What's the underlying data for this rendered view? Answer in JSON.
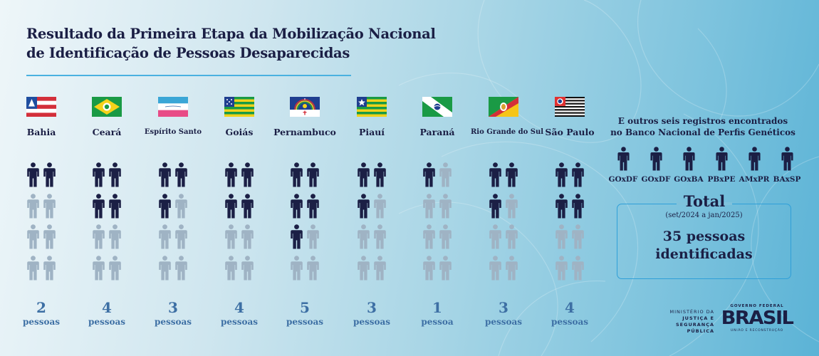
{
  "title": {
    "line1": "Resultado da Primeira Etapa da Mobilização Nacional",
    "line2": "de Identificação de Pessoas Desaparecidas"
  },
  "colors": {
    "filled_person": "#1b1f45",
    "empty_person": "#9fb3c4",
    "count_text": "#3d6fa4",
    "accent_rule": "#4ab1e0",
    "total_box_border": "#2f9fd8"
  },
  "states": [
    {
      "name": "Bahia",
      "flag": "bahia-flag",
      "count": "2",
      "unit": "pessoas",
      "filled": 2
    },
    {
      "name": "Ceará",
      "flag": "ceara-flag",
      "count": "4",
      "unit": "pessoas",
      "filled": 4
    },
    {
      "name": "Espírito Santo",
      "flag": "espirito-santo-flag",
      "count": "3",
      "unit": "pessoas",
      "filled": 3
    },
    {
      "name": "Goiás",
      "flag": "goias-flag",
      "count": "4",
      "unit": "pessoas",
      "filled": 4
    },
    {
      "name": "Pernambuco",
      "flag": "pernambuco-flag",
      "count": "5",
      "unit": "pessoas",
      "filled": 5
    },
    {
      "name": "Piauí",
      "flag": "piaui-flag",
      "count": "3",
      "unit": "pessoas",
      "filled": 3
    },
    {
      "name": "Paraná",
      "flag": "parana-flag",
      "count": "1",
      "unit": "pessoa",
      "filled": 1
    },
    {
      "name": "Rio Grande do Sul",
      "flag": "rio-grande-do-sul-flag",
      "count": "3",
      "unit": "pessoas",
      "filled": 3
    },
    {
      "name": "São Paulo",
      "flag": "sao-paulo-flag",
      "count": "4",
      "unit": "pessoas",
      "filled": 4
    }
  ],
  "extra": {
    "heading_line1": "E outros seis registros encontrados",
    "heading_line2": "no Banco Nacional de Perfis Genéticos",
    "codes": [
      "GOxDF",
      "GOxDF",
      "GOxBA",
      "PBxPE",
      "AMxPR",
      "BAxSP"
    ]
  },
  "total": {
    "label": "Total",
    "period": "(set/2024 a jan/2025)",
    "value_line1": "35 pessoas",
    "value_line2": "identificadas"
  },
  "footer": {
    "ministry_line1": "MINISTÉRIO DA",
    "ministry_line2": "JUSTIÇA E",
    "ministry_line3": "SEGURANÇA PÚBLICA",
    "gov_top": "GOVERNO FEDERAL",
    "gov_brand": "BRASIL",
    "gov_sub": "UNIÃO E RECONSTRUÇÃO"
  },
  "chart_data": {
    "type": "bar",
    "title": "Resultado da Primeira Etapa da Mobilização Nacional de Identificação de Pessoas Desaparecidas",
    "subtitle": "(set/2024 a jan/2025)",
    "categories": [
      "Bahia",
      "Ceará",
      "Espírito Santo",
      "Goiás",
      "Pernambuco",
      "Piauí",
      "Paraná",
      "Rio Grande do Sul",
      "São Paulo"
    ],
    "values": [
      2,
      4,
      3,
      4,
      5,
      3,
      1,
      3,
      4
    ],
    "unit": "pessoas identificadas (pictograma, 8 ícones por estado)",
    "max_icons_per_category": 8,
    "additional_records": {
      "label": "E outros seis registros encontrados no Banco Nacional de Perfis Genéticos",
      "codes": [
        "GOxDF",
        "GOxDF",
        "GOxBA",
        "PBxPE",
        "AMxPR",
        "BAxSP"
      ],
      "count": 6
    },
    "total": 35,
    "annotations": [
      "Total",
      "35 pessoas identificadas"
    ],
    "xlabel": "",
    "ylabel": "",
    "legend": "none",
    "grid": false
  }
}
